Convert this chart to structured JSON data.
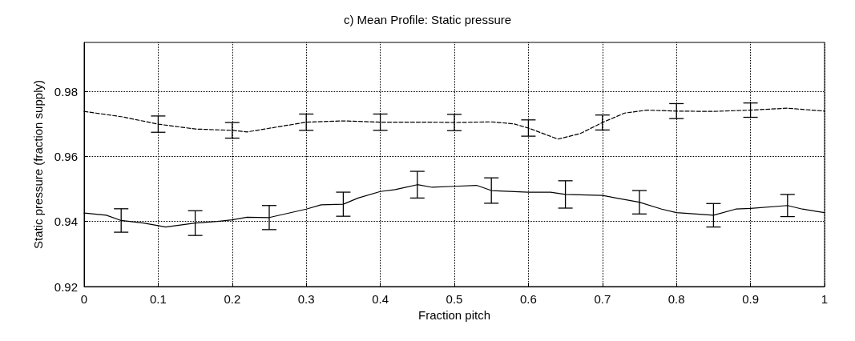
{
  "chart_data": {
    "type": "line",
    "title": "c) Mean Profile: Static pressure",
    "xlabel": "Fraction pitch",
    "ylabel": "Static pressure (fraction supply)",
    "xlim": [
      0,
      1
    ],
    "xticks": [
      0,
      0.1,
      0.2,
      0.3,
      0.4,
      0.5,
      0.6,
      0.7,
      0.8,
      0.9,
      1
    ],
    "ylim": [
      0.92,
      0.995
    ],
    "yticks": [
      0.92,
      0.94,
      0.96,
      0.98
    ],
    "grid": true,
    "marker": "none",
    "series": [
      {
        "color": "#000000",
        "line_style": "dashed",
        "x": [
          0,
          0.05,
          0.1,
          0.15,
          0.2,
          0.22,
          0.3,
          0.35,
          0.4,
          0.45,
          0.47,
          0.5,
          0.55,
          0.58,
          0.6,
          0.62,
          0.64,
          0.67,
          0.7,
          0.73,
          0.76,
          0.8,
          0.85,
          0.9,
          0.95,
          1
        ],
        "values": [
          0.9738,
          0.9722,
          0.9699,
          0.9684,
          0.968,
          0.9675,
          0.9705,
          0.9709,
          0.9705,
          0.9705,
          0.9705,
          0.9704,
          0.9706,
          0.97,
          0.9687,
          0.967,
          0.9653,
          0.967,
          0.9704,
          0.9733,
          0.9742,
          0.9739,
          0.9738,
          0.9742,
          0.9748,
          0.9739
        ],
        "errors": [
          null,
          null,
          0.0025,
          null,
          0.0024,
          null,
          0.0025,
          null,
          0.0025,
          null,
          null,
          0.0025,
          null,
          null,
          0.0025,
          null,
          null,
          null,
          0.0023,
          null,
          null,
          0.0023,
          null,
          0.0022,
          null,
          null
        ]
      },
      {
        "color": "#000000",
        "line_style": "solid",
        "x": [
          0,
          0.03,
          0.05,
          0.08,
          0.1,
          0.11,
          0.15,
          0.18,
          0.2,
          0.22,
          0.25,
          0.3,
          0.32,
          0.35,
          0.37,
          0.4,
          0.42,
          0.45,
          0.47,
          0.5,
          0.53,
          0.55,
          0.6,
          0.63,
          0.65,
          0.7,
          0.75,
          0.78,
          0.8,
          0.85,
          0.88,
          0.9,
          0.95,
          0.97,
          1
        ],
        "values": [
          0.9426,
          0.9419,
          0.9403,
          0.9395,
          0.9387,
          0.9383,
          0.9395,
          0.94,
          0.9405,
          0.9413,
          0.9412,
          0.9438,
          0.9451,
          0.9453,
          0.9472,
          0.9492,
          0.9498,
          0.9513,
          0.9505,
          0.9508,
          0.9511,
          0.9495,
          0.949,
          0.949,
          0.9483,
          0.948,
          0.9459,
          0.9438,
          0.9427,
          0.9419,
          0.9438,
          0.944,
          0.9449,
          0.9438,
          0.9427
        ],
        "errors": [
          null,
          null,
          0.0036,
          null,
          null,
          null,
          0.0038,
          null,
          null,
          null,
          0.0037,
          null,
          null,
          0.0037,
          null,
          null,
          null,
          0.0041,
          null,
          null,
          null,
          0.0039,
          null,
          null,
          0.0042,
          null,
          0.0036,
          null,
          null,
          0.0036,
          null,
          null,
          0.0034,
          null,
          null
        ]
      }
    ]
  }
}
